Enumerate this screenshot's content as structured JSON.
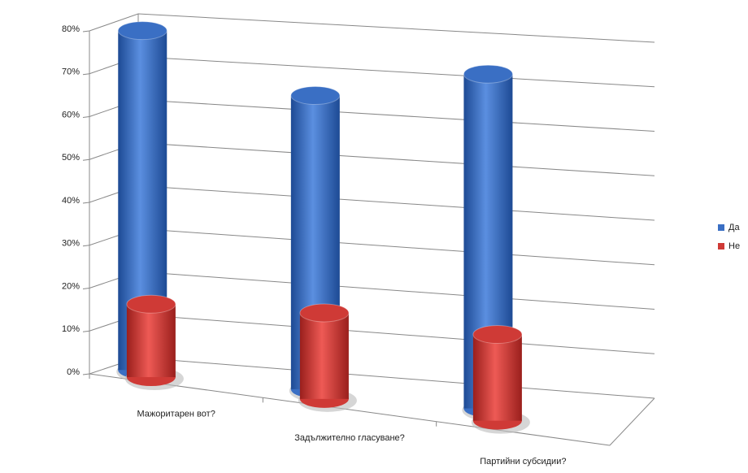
{
  "chart_data": {
    "type": "bar3d",
    "categories": [
      "Мажоритарен вот?",
      "Задължително гласуване?",
      "Партийни субсидии?"
    ],
    "series": [
      {
        "name": "Да",
        "color": "#3a6fc4",
        "values": [
          79,
          68,
          77
        ]
      },
      {
        "name": "Не",
        "color": "#cf3a36",
        "values": [
          17,
          20,
          20
        ]
      }
    ],
    "ylim": [
      0,
      80
    ],
    "yticks": [
      {
        "value": 0,
        "label": "0%"
      },
      {
        "value": 10,
        "label": "10%"
      },
      {
        "value": 20,
        "label": "20%"
      },
      {
        "value": 30,
        "label": "30%"
      },
      {
        "value": 40,
        "label": "40%"
      },
      {
        "value": 50,
        "label": "50%"
      },
      {
        "value": 60,
        "label": "60%"
      },
      {
        "value": 70,
        "label": "70%"
      },
      {
        "value": 80,
        "label": "80%"
      }
    ],
    "grid": true,
    "legend": "right"
  }
}
